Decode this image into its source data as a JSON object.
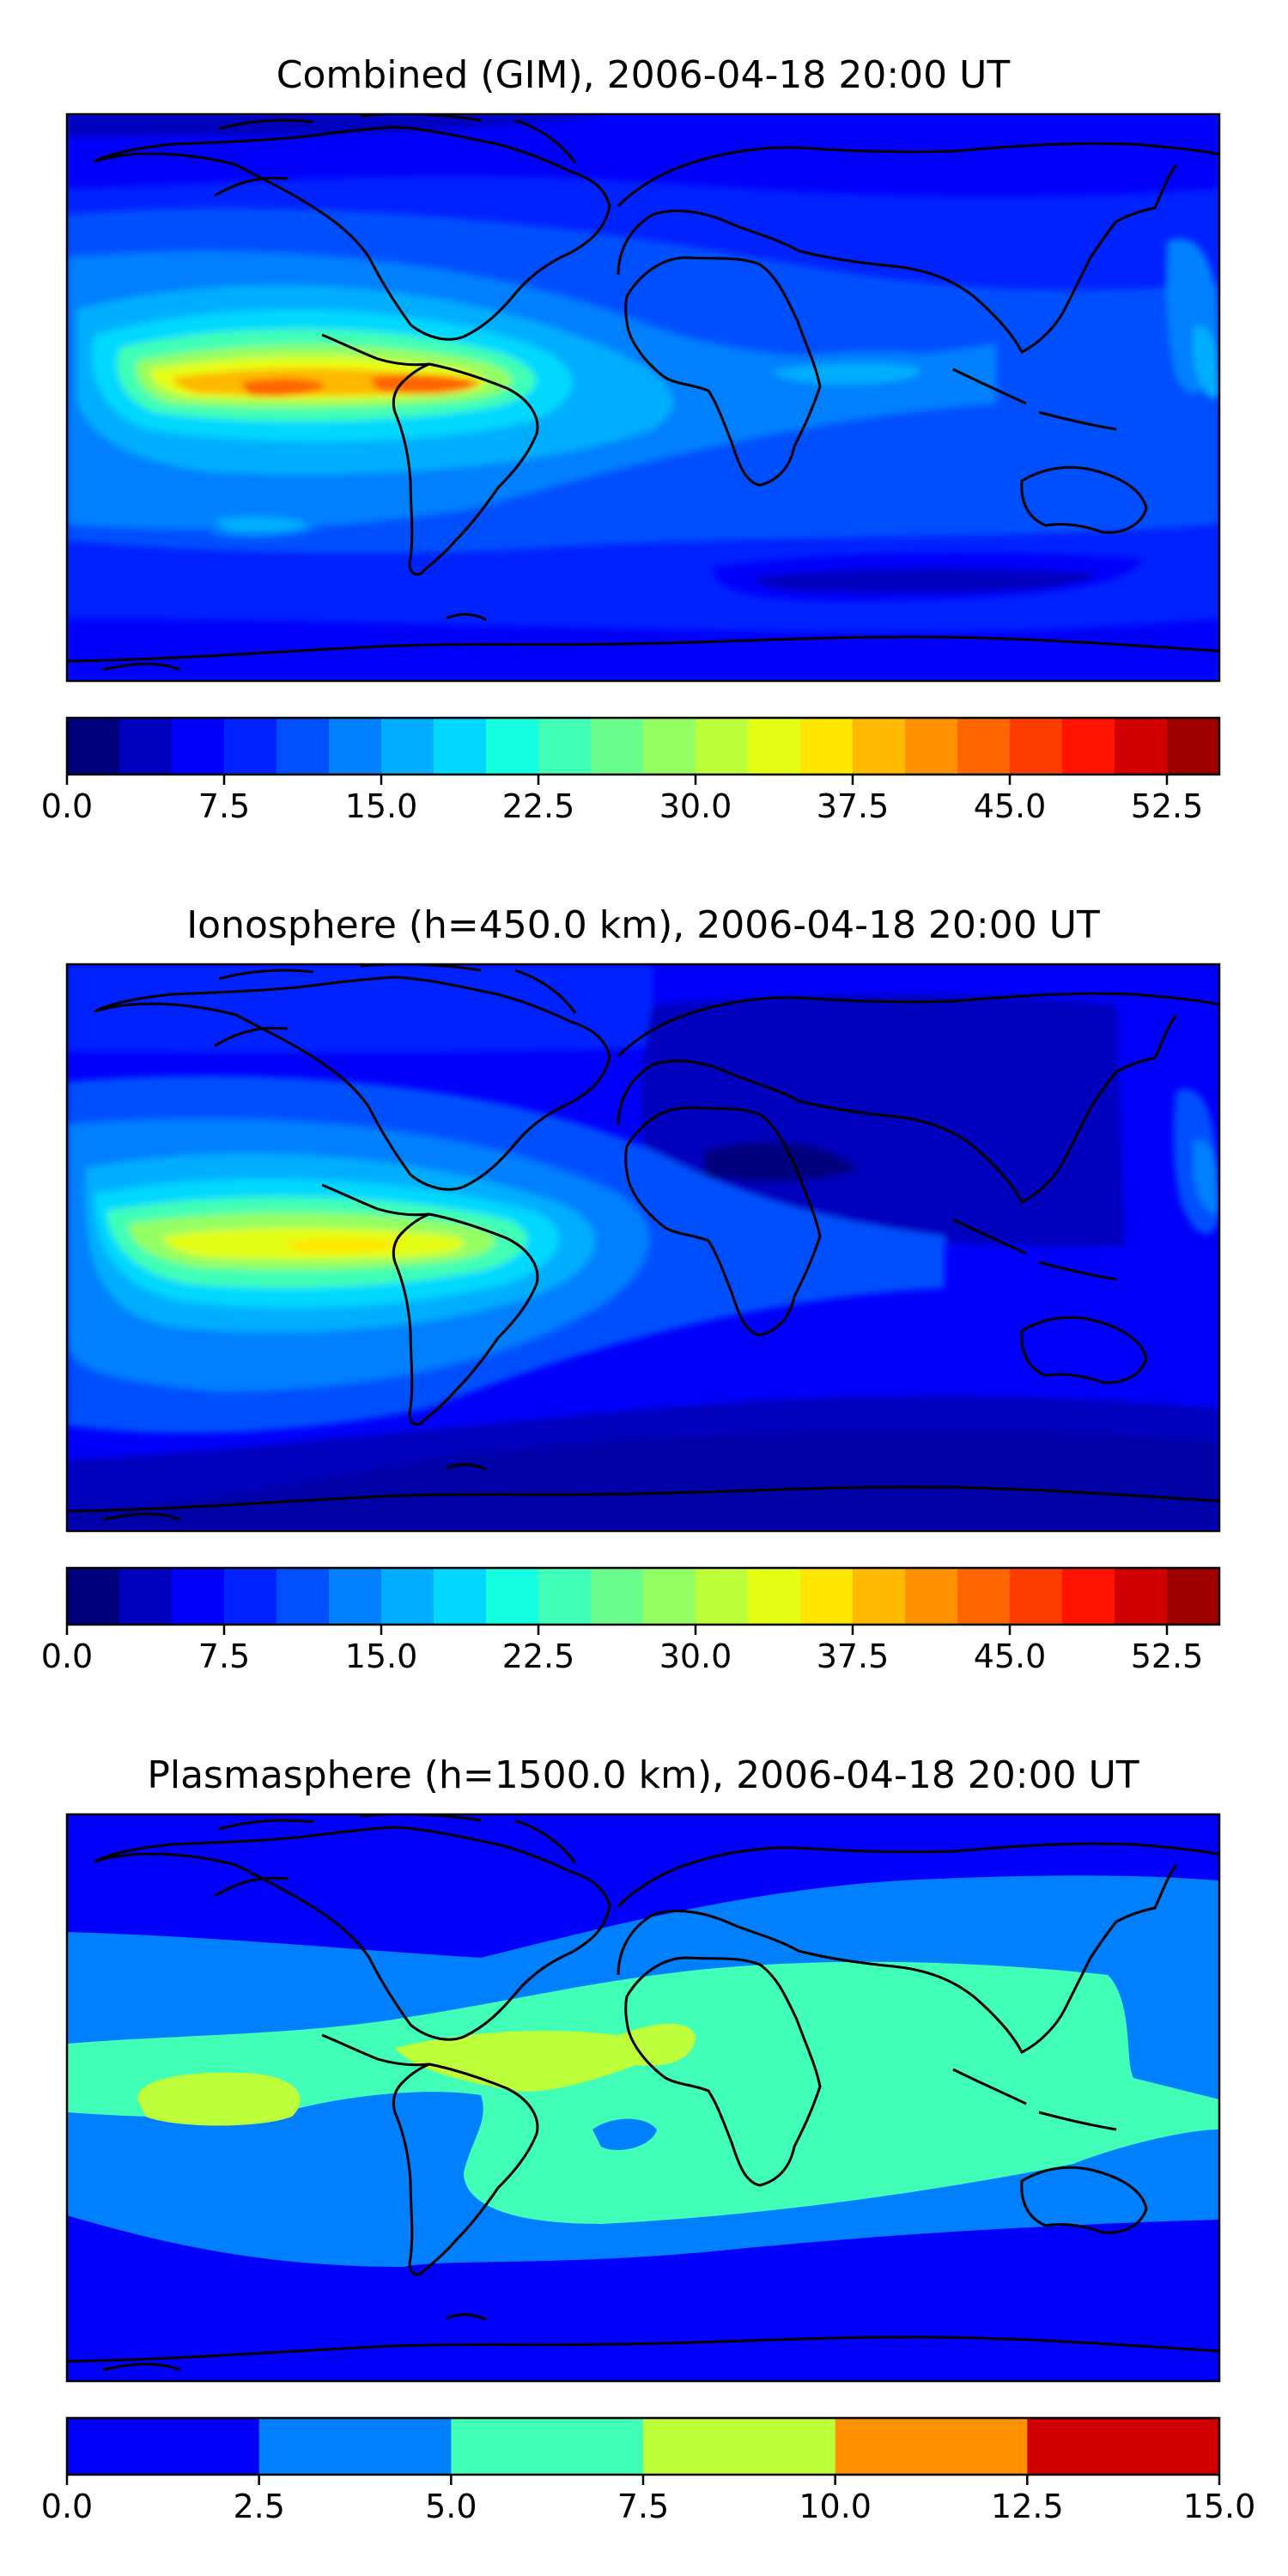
{
  "chart_data": [
    {
      "type": "heatmap",
      "title": "Combined (GIM), 2006-04-18 20:00 UT",
      "xlabel": "",
      "ylabel": "",
      "colorbar": {
        "ticks": [
          "0.0",
          "7.5",
          "15.0",
          "22.5",
          "30.0",
          "37.5",
          "45.0",
          "52.5"
        ],
        "range": [
          0,
          55
        ],
        "levels": [
          0,
          2.5,
          5,
          7.5,
          10,
          12.5,
          15,
          17.5,
          20,
          22.5,
          25,
          27.5,
          30,
          32.5,
          35,
          37.5,
          40,
          42.5,
          45,
          47.5,
          50,
          52.5,
          55
        ],
        "colors": [
          "#00007f",
          "#0000bd",
          "#0000fa",
          "#0022ff",
          "#0050ff",
          "#0080ff",
          "#00aeff",
          "#00d8ff",
          "#16ffe1",
          "#41ffb6",
          "#6aff8d",
          "#94ff63",
          "#bdff3a",
          "#e4ff13",
          "#ffe600",
          "#ffb900",
          "#ff9000",
          "#ff6500",
          "#ff3c00",
          "#ff1300",
          "#d10000",
          "#9e0000"
        ]
      },
      "features": [
        {
          "name": "Equatorial anomaly over South America",
          "level": 42.5
        },
        {
          "name": "Equatorial band eastern Pacific",
          "level": 37.5
        },
        {
          "name": "Southern Pacific patch",
          "level": 20
        },
        {
          "name": "Equatorial Africa patch",
          "level": 20
        },
        {
          "name": "Southern Indian Ocean trough",
          "level": 2.5
        }
      ]
    },
    {
      "type": "heatmap",
      "title": "Ionosphere  (h=450.0 km), 2006-04-18 20:00 UT",
      "xlabel": "",
      "ylabel": "",
      "colorbar": {
        "ticks": [
          "0.0",
          "7.5",
          "15.0",
          "22.5",
          "30.0",
          "37.5",
          "45.0",
          "52.5"
        ],
        "range": [
          0,
          55
        ],
        "levels": [
          0,
          2.5,
          5,
          7.5,
          10,
          12.5,
          15,
          17.5,
          20,
          22.5,
          25,
          27.5,
          30,
          32.5,
          35,
          37.5,
          40,
          42.5,
          45,
          47.5,
          50,
          52.5,
          55
        ],
        "colors": [
          "#00007f",
          "#0000bd",
          "#0000fa",
          "#0022ff",
          "#0050ff",
          "#0080ff",
          "#00aeff",
          "#00d8ff",
          "#16ffe1",
          "#41ffb6",
          "#6aff8d",
          "#94ff63",
          "#bdff3a",
          "#e4ff13",
          "#ffe600",
          "#ffb900",
          "#ff9000",
          "#ff6500",
          "#ff3c00",
          "#ff1300",
          "#d10000",
          "#9e0000"
        ]
      },
      "features": [
        {
          "name": "Equatorial anomaly over South America",
          "level": 35
        },
        {
          "name": "Eastern Pacific band",
          "level": 25
        },
        {
          "name": "Eurasia / North Africa night-side low",
          "level": 2.5
        },
        {
          "name": "Southern ocean low",
          "level": 2.5
        }
      ]
    },
    {
      "type": "heatmap",
      "title": "Plasmasphere (h=1500.0 km), 2006-04-18 20:00 UT",
      "xlabel": "",
      "ylabel": "",
      "colorbar": {
        "ticks": [
          "0.0",
          "2.5",
          "5.0",
          "7.5",
          "10.0",
          "12.5",
          "15.0"
        ],
        "range": [
          0,
          15
        ],
        "levels": [
          0,
          2.5,
          5,
          7.5,
          10,
          12.5,
          15
        ],
        "colors": [
          "#0000fa",
          "#0080ff",
          "#41ffb6",
          "#bdff3a",
          "#ff9000",
          "#d10000"
        ]
      },
      "features": [
        {
          "name": "Low-latitude band",
          "level": 5
        },
        {
          "name": "Eastern Pacific / Caribbean maxima",
          "level": 7.5
        },
        {
          "name": "Gulf of Guinea low",
          "level": 2.5
        }
      ]
    }
  ]
}
